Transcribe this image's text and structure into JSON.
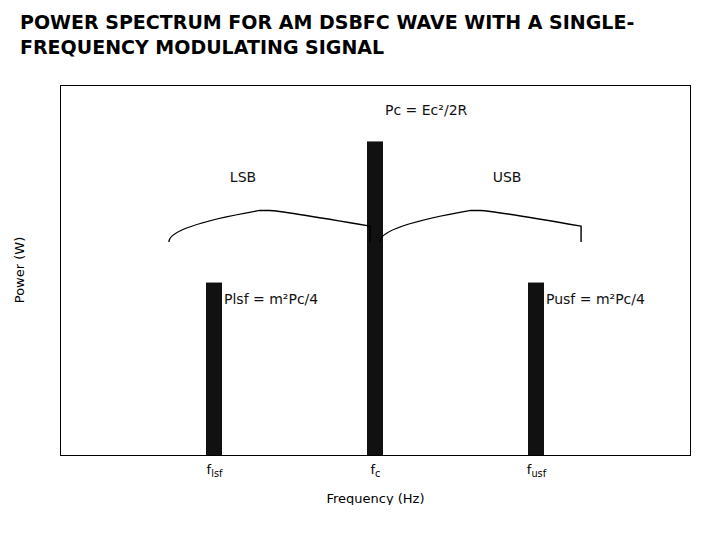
{
  "chart_data": {
    "type": "bar",
    "title": "POWER SPECTRUM FOR AM DSBFC WAVE WITH A SINGLE-FREQUENCY MODULATING SIGNAL",
    "xlabel": "Frequency (Hz)",
    "ylabel": "Power (W)",
    "categories": [
      "flsf",
      "fc",
      "fusf"
    ],
    "values": [
      0.55,
      1.0,
      0.55
    ],
    "color": "#111111",
    "ylim": [
      0,
      1.18
    ],
    "yticks": [],
    "tick_labels": "x",
    "grid": false,
    "annotations": [
      "LSB",
      "USB",
      "Pc = Ec²/2R",
      "Plsf = m²Pc/4",
      "Pusf = m²Pc/4"
    ]
  }
}
